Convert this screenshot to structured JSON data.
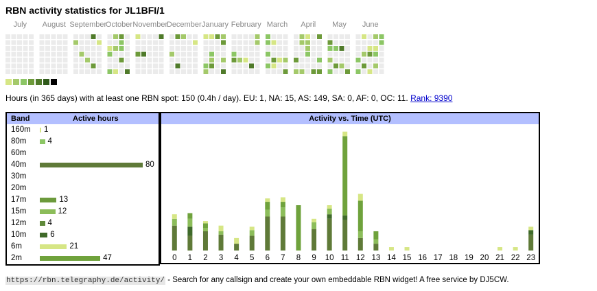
{
  "title": "RBN activity statistics for JL1BFI/1",
  "calendar": {
    "months": [
      "July",
      "August",
      "September",
      "October",
      "November",
      "December",
      "January",
      "February",
      "March",
      "April",
      "May",
      "June"
    ]
  },
  "legend_colors": [
    "#d6e685",
    "#a4c96a",
    "#8cc665",
    "#6d9a3a",
    "#4f7a2a",
    "#2f5a1a",
    "#000000"
  ],
  "stats": {
    "text": "Hours (in 365 days) with at least one RBN spot: 150 (0.4h / day). EU: 1, NA: 15, AS: 149, SA: 0, AF: 0, OC: 11.",
    "rank_link": "Rank: 9390"
  },
  "band_table": {
    "header_band": "Band",
    "header_hours": "Active hours",
    "rows": [
      {
        "band": "160m",
        "hours": "1",
        "value": 1,
        "color": "#d6e685"
      },
      {
        "band": "80m",
        "hours": "4",
        "value": 4,
        "color": "#8cc665"
      },
      {
        "band": "60m",
        "hours": "",
        "value": 0,
        "color": "#8cc665"
      },
      {
        "band": "40m",
        "hours": "80",
        "value": 80,
        "color": "#5f7a38"
      },
      {
        "band": "30m",
        "hours": "",
        "value": 0,
        "color": "#8cc665"
      },
      {
        "band": "20m",
        "hours": "",
        "value": 0,
        "color": "#8cc665"
      },
      {
        "band": "17m",
        "hours": "13",
        "value": 13,
        "color": "#6c9a3c"
      },
      {
        "band": "15m",
        "hours": "12",
        "value": 12,
        "color": "#8cbd5a"
      },
      {
        "band": "12m",
        "hours": "4",
        "value": 4,
        "color": "#5f8a3a"
      },
      {
        "band": "10m",
        "hours": "6",
        "value": 6,
        "color": "#3f6a2a"
      },
      {
        "band": "6m",
        "hours": "21",
        "value": 21,
        "color": "#d6e685"
      },
      {
        "band": "2m",
        "hours": "47",
        "value": 47,
        "color": "#6fa23c"
      }
    ]
  },
  "activity": {
    "header": "Activity vs. Time (UTC)",
    "hours": [
      "0",
      "1",
      "2",
      "3",
      "4",
      "5",
      "6",
      "7",
      "8",
      "9",
      "10",
      "11",
      "12",
      "13",
      "14",
      "15",
      "16",
      "17",
      "18",
      "19",
      "20",
      "21",
      "22",
      "23"
    ]
  },
  "chart_data": {
    "type": "bar",
    "title": "Activity vs. Time (UTC)",
    "categories": [
      "0",
      "1",
      "2",
      "3",
      "4",
      "5",
      "6",
      "7",
      "8",
      "9",
      "10",
      "11",
      "12",
      "13",
      "14",
      "15",
      "16",
      "17",
      "18",
      "19",
      "20",
      "21",
      "22",
      "23"
    ],
    "series": [
      {
        "color": "#5f7a38",
        "values": [
          22,
          13,
          17,
          14,
          6,
          13,
          30,
          30,
          0,
          19,
          28,
          27,
          11,
          6,
          0,
          0,
          0,
          0,
          0,
          0,
          0,
          0,
          0,
          14
        ]
      },
      {
        "color": "#3f6a2a",
        "values": [
          0,
          8,
          0,
          0,
          0,
          0,
          0,
          0,
          0,
          0,
          4,
          4,
          0,
          0,
          0,
          0,
          0,
          0,
          0,
          0,
          0,
          0,
          0,
          4
        ]
      },
      {
        "color": "#8cbd5a",
        "values": [
          6,
          7,
          3,
          3,
          0,
          5,
          6,
          8,
          0,
          6,
          5,
          0,
          6,
          4,
          0,
          0,
          0,
          0,
          0,
          0,
          0,
          0,
          0,
          0
        ]
      },
      {
        "color": "#6fa23c",
        "values": [
          0,
          5,
          4,
          0,
          0,
          0,
          7,
          5,
          40,
          0,
          0,
          70,
          27,
          7,
          0,
          0,
          0,
          0,
          0,
          0,
          0,
          0,
          0,
          0
        ]
      },
      {
        "color": "#d6e685",
        "values": [
          4,
          0,
          2,
          5,
          5,
          3,
          3,
          4,
          0,
          3,
          3,
          4,
          6,
          0,
          3,
          3,
          0,
          0,
          0,
          0,
          0,
          3,
          3,
          3
        ]
      }
    ]
  },
  "footer": {
    "url": "https://rbn.telegraphy.de/activity/",
    "text": " - Search for any callsign and create your own embeddable RBN widget! A free service by DJ5CW."
  }
}
